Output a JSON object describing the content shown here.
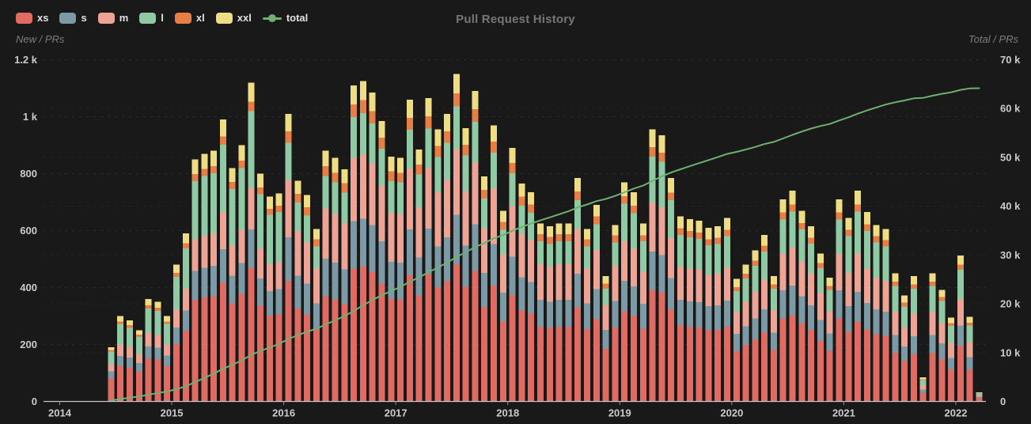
{
  "panel": {
    "title": "Pull Request History",
    "left_axis_title": "New / PRs",
    "right_axis_title": "Total / PRs"
  },
  "colors": {
    "background": "#19191a",
    "xs": "#df6b62",
    "s": "#7b9aa5",
    "m": "#eda495",
    "l": "#8fcaa5",
    "xl": "#e77e45",
    "xxl": "#eedd83",
    "total": "#6fb070",
    "grid": "#2c2c2d",
    "axis_text": "#cbcccd"
  },
  "legend": [
    {
      "label": "xs",
      "type": "box",
      "color": "#df6b62"
    },
    {
      "label": "s",
      "type": "box",
      "color": "#7b9aa5"
    },
    {
      "label": "m",
      "type": "box",
      "color": "#eda495"
    },
    {
      "label": "l",
      "type": "box",
      "color": "#8fcaa5"
    },
    {
      "label": "xl",
      "type": "box",
      "color": "#e77e45"
    },
    {
      "label": "xxl",
      "type": "box",
      "color": "#eedd83"
    },
    {
      "label": "total",
      "type": "line",
      "color": "#6fb070"
    }
  ],
  "chart_data": {
    "type": "bar",
    "subtype": "stacked monthly bars + cumulative total line on right axis",
    "title": "Pull Request History",
    "xlabel": "",
    "ylabel_left": "New / PRs",
    "ylabel_right": "Total / PRs",
    "grid": "dashed horizontal",
    "legend_position": "top-left",
    "left_axis": {
      "tick_labels": [
        "0",
        "200",
        "400",
        "600",
        "800",
        "1 k",
        "1.2 k"
      ],
      "tick_values": [
        0,
        200,
        400,
        600,
        800,
        1000,
        1200
      ],
      "max": 1200
    },
    "right_axis": {
      "tick_labels": [
        "0",
        "10 k",
        "20 k",
        "30 k",
        "40 k",
        "50 k",
        "60 k",
        "70 k"
      ],
      "tick_values": [
        0,
        10000,
        20000,
        30000,
        40000,
        50000,
        60000,
        70000
      ],
      "max": 70000
    },
    "x_axis": {
      "year_labels": [
        "2014",
        "2015",
        "2016",
        "2017",
        "2018",
        "2019",
        "2020",
        "2021",
        "2022"
      ]
    },
    "months": [
      "2014-06",
      "2014-07",
      "2014-08",
      "2014-09",
      "2014-10",
      "2014-11",
      "2014-12",
      "2015-01",
      "2015-02",
      "2015-03",
      "2015-04",
      "2015-05",
      "2015-06",
      "2015-07",
      "2015-08",
      "2015-09",
      "2015-10",
      "2015-11",
      "2015-12",
      "2016-01",
      "2016-02",
      "2016-03",
      "2016-04",
      "2016-05",
      "2016-06",
      "2016-07",
      "2016-08",
      "2016-09",
      "2016-10",
      "2016-11",
      "2016-12",
      "2017-01",
      "2017-02",
      "2017-03",
      "2017-04",
      "2017-05",
      "2017-06",
      "2017-07",
      "2017-08",
      "2017-09",
      "2017-10",
      "2017-11",
      "2017-12",
      "2018-01",
      "2018-02",
      "2018-03",
      "2018-04",
      "2018-05",
      "2018-06",
      "2018-07",
      "2018-08",
      "2018-09",
      "2018-10",
      "2018-11",
      "2018-12",
      "2019-01",
      "2019-02",
      "2019-03",
      "2019-04",
      "2019-05",
      "2019-06",
      "2019-07",
      "2019-08",
      "2019-09",
      "2019-10",
      "2019-11",
      "2019-12",
      "2020-01",
      "2020-02",
      "2020-03",
      "2020-04",
      "2020-05",
      "2020-06",
      "2020-07",
      "2020-08",
      "2020-09",
      "2020-10",
      "2020-11",
      "2020-12",
      "2021-01",
      "2021-02",
      "2021-03",
      "2021-04",
      "2021-05",
      "2021-06",
      "2021-07",
      "2021-08",
      "2021-09",
      "2021-10",
      "2021-11",
      "2021-12",
      "2022-01",
      "2022-02",
      "2022-03"
    ],
    "series": [
      {
        "name": "xs",
        "values": [
          80,
          125,
          120,
          105,
          150,
          147,
          125,
          202,
          248,
          357,
          365,
          370,
          416,
          344,
          378,
          470,
          336,
          302,
          307,
          424,
          326,
          305,
          254,
          370,
          359,
          342,
          466,
          473,
          456,
          414,
          361,
          359,
          445,
          372,
          447,
          401,
          424,
          483,
          403,
          458,
          332,
          407,
          281,
          374,
          321,
          309,
          263,
          258,
          263,
          263,
          330,
          254,
          290,
          185,
          260,
          316,
          301,
          255,
          392,
          383,
          323,
          266,
          262,
          260,
          250,
          251,
          264,
          177,
          197,
          217,
          241,
          180,
          291,
          303,
          275,
          252,
          213,
          178,
          291,
          245,
          281,
          253,
          236,
          230,
          171,
          141,
          167,
          30,
          171,
          149,
          112,
          195,
          113,
          12
        ]
      },
      {
        "name": "s",
        "values": [
          25,
          35,
          34,
          30,
          43,
          42,
          36,
          58,
          71,
          102,
          104,
          106,
          119,
          98,
          108,
          134,
          96,
          86,
          88,
          152,
          116,
          109,
          91,
          132,
          128,
          122,
          167,
          169,
          163,
          148,
          129,
          128,
          159,
          133,
          160,
          143,
          152,
          173,
          144,
          164,
          119,
          146,
          101,
          134,
          115,
          110,
          94,
          92,
          94,
          94,
          118,
          91,
          104,
          66,
          93,
          108,
          103,
          88,
          134,
          131,
          110,
          91,
          90,
          89,
          85,
          86,
          90,
          60,
          67,
          74,
          82,
          62,
          99,
          104,
          94,
          86,
          73,
          61,
          99,
          90,
          104,
          93,
          87,
          85,
          63,
          52,
          62,
          12,
          63,
          55,
          41,
          72,
          42,
          4
        ]
      },
      {
        "name": "m",
        "values": [
          25,
          40,
          37,
          32,
          47,
          45,
          39,
          62,
          77,
          110,
          113,
          114,
          129,
          107,
          117,
          146,
          104,
          94,
          95,
          202,
          155,
          145,
          121,
          176,
          171,
          163,
          222,
          225,
          217,
          197,
          172,
          171,
          212,
          177,
          213,
          191,
          202,
          230,
          192,
          218,
          158,
          194,
          134,
          178,
          153,
          147,
          125,
          123,
          125,
          125,
          157,
          121,
          138,
          88,
          124,
          139,
          132,
          113,
          172,
          168,
          141,
          117,
          115,
          114,
          110,
          111,
          116,
          77,
          86,
          95,
          105,
          79,
          128,
          133,
          121,
          111,
          94,
          78,
          128,
          116,
          133,
          120,
          112,
          109,
          81,
          67,
          79,
          15,
          81,
          71,
          53,
          92,
          53,
          6
        ]
      },
      {
        "name": "l",
        "values": [
          45,
          72,
          68,
          60,
          87,
          84,
          72,
          115,
          141,
          204,
          209,
          211,
          237,
          197,
          216,
          269,
          192,
          173,
          175,
          131,
          101,
          94,
          79,
          114,
          111,
          106,
          144,
          146,
          141,
          128,
          112,
          111,
          138,
          115,
          138,
          124,
          131,
          150,
          125,
          142,
          103,
          126,
          87,
          116,
          99,
          96,
          81,
          80,
          81,
          81,
          102,
          79,
          90,
          57,
          81,
          131,
          125,
          106,
          162,
          159,
          133,
          111,
          109,
          108,
          104,
          105,
          110,
          73,
          82,
          90,
          99,
          75,
          121,
          126,
          114,
          105,
          88,
          74,
          121,
          129,
          148,
          133,
          124,
          121,
          90,
          74,
          88,
          18,
          90,
          78,
          59,
          103,
          59,
          7
        ]
      },
      {
        "name": "xl",
        "values": [
          5,
          8,
          9,
          8,
          11,
          11,
          9,
          14,
          18,
          26,
          26,
          26,
          30,
          25,
          27,
          34,
          24,
          22,
          22,
          40,
          31,
          29,
          24,
          35,
          34,
          33,
          44,
          45,
          43,
          39,
          34,
          34,
          42,
          35,
          43,
          38,
          40,
          46,
          38,
          44,
          31,
          39,
          27,
          36,
          31,
          29,
          25,
          25,
          25,
          25,
          31,
          24,
          28,
          18,
          25,
          27,
          26,
          22,
          33,
          33,
          27,
          23,
          22,
          22,
          21,
          22,
          23,
          15,
          17,
          19,
          20,
          15,
          25,
          26,
          23,
          21,
          18,
          15,
          25,
          23,
          26,
          23,
          22,
          21,
          16,
          13,
          15,
          3,
          16,
          14,
          10,
          18,
          10,
          1
        ]
      },
      {
        "name": "xxl",
        "values": [
          10,
          20,
          17,
          15,
          22,
          21,
          19,
          29,
          35,
          51,
          53,
          53,
          59,
          49,
          54,
          67,
          48,
          43,
          43,
          61,
          46,
          43,
          36,
          53,
          52,
          49,
          67,
          67,
          65,
          59,
          52,
          52,
          64,
          53,
          64,
          58,
          61,
          68,
          58,
          64,
          47,
          58,
          40,
          52,
          46,
          44,
          37,
          37,
          37,
          37,
          47,
          36,
          40,
          26,
          37,
          49,
          48,
          41,
          62,
          61,
          51,
          42,
          42,
          42,
          40,
          40,
          42,
          28,
          31,
          35,
          38,
          29,
          46,
          48,
          43,
          40,
          34,
          29,
          46,
          42,
          48,
          43,
          39,
          39,
          29,
          25,
          29,
          7,
          29,
          25,
          20,
          33,
          20,
          2
        ]
      }
    ],
    "total_line": {
      "name": "total",
      "axis": "right",
      "derivation": "cumulative sum of monthly stacked totals, starts ~190 in 2014-06 and ends ~64 k in 2022-03"
    }
  }
}
